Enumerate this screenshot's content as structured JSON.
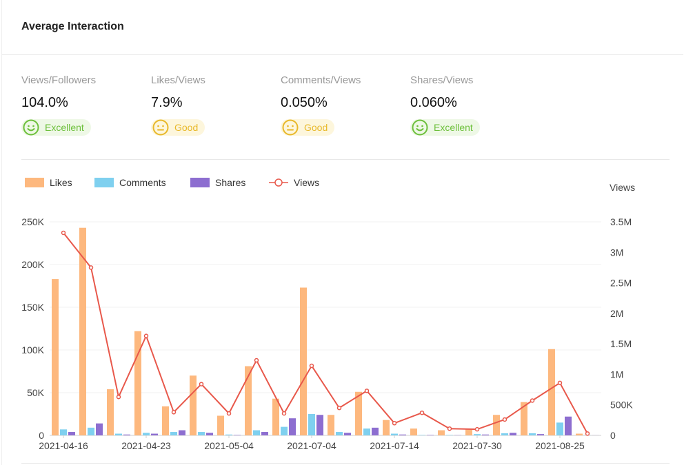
{
  "header": {
    "title": "Average Interaction"
  },
  "metrics": [
    {
      "label": "Views/Followers",
      "value": "104.0%",
      "rating": "Excellent",
      "rating_color": "#6cbf3a"
    },
    {
      "label": "Likes/Views",
      "value": "7.9%",
      "rating": "Good",
      "rating_color": "#e8b829"
    },
    {
      "label": "Comments/Views",
      "value": "0.050%",
      "rating": "Good",
      "rating_color": "#e8b829"
    },
    {
      "label": "Shares/Views",
      "value": "0.060%",
      "rating": "Excellent",
      "rating_color": "#6cbf3a"
    }
  ],
  "legend": {
    "likes": "Likes",
    "comments": "Comments",
    "shares": "Shares",
    "views": "Views"
  },
  "chart_data": {
    "type": "bar",
    "title": "",
    "right_axis_label": "Views",
    "colors": {
      "likes": "#fdb87e",
      "comments": "#7fd0ef",
      "shares": "#8d6ed0",
      "views": "#e8584b"
    },
    "x_tick_labels": [
      "2021-04-16",
      "2021-04-23",
      "2021-05-04",
      "2021-07-04",
      "2021-07-14",
      "2021-07-30",
      "2021-08-25"
    ],
    "left_ticks": [
      "0",
      "50K",
      "100K",
      "150K",
      "200K",
      "250K"
    ],
    "right_ticks": [
      "0",
      "500K",
      "1M",
      "1.5M",
      "2M",
      "2.5M",
      "3M",
      "3.5M"
    ],
    "ylim_left": [
      0,
      250000
    ],
    "ylim_right": [
      0,
      3500000
    ],
    "group_count": 20,
    "series": [
      {
        "name": "Likes",
        "axis": "left",
        "values": [
          183000,
          243000,
          54000,
          122000,
          34000,
          70000,
          23000,
          81000,
          43000,
          173000,
          24000,
          51000,
          18000,
          8000,
          6000,
          8000,
          24000,
          39000,
          101000,
          2000
        ]
      },
      {
        "name": "Comments",
        "axis": "left",
        "values": [
          7000,
          9000,
          2000,
          3000,
          4000,
          4000,
          1000,
          6000,
          10000,
          25000,
          4000,
          8000,
          2000,
          500,
          500,
          1500,
          2500,
          2500,
          15000,
          200
        ]
      },
      {
        "name": "Shares",
        "axis": "left",
        "values": [
          4000,
          14000,
          1000,
          2000,
          6000,
          3000,
          500,
          4000,
          20000,
          24000,
          3000,
          9000,
          1000,
          500,
          300,
          1000,
          3000,
          1500,
          22000,
          100
        ]
      },
      {
        "name": "Views",
        "axis": "right",
        "values": [
          3320000,
          2750000,
          630000,
          1630000,
          380000,
          840000,
          360000,
          1230000,
          360000,
          1140000,
          450000,
          730000,
          200000,
          370000,
          110000,
          100000,
          260000,
          570000,
          860000,
          30000
        ]
      }
    ]
  }
}
